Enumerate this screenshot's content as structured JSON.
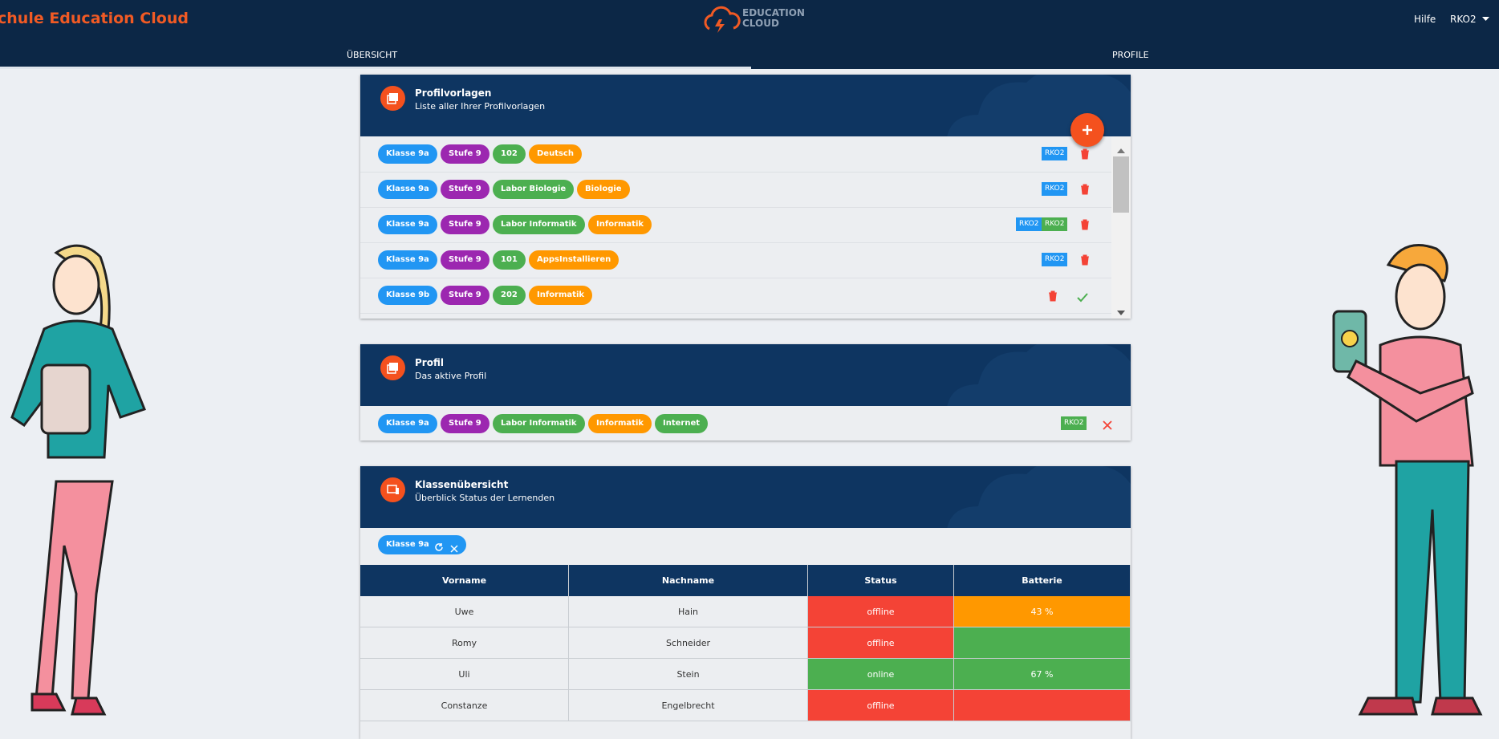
{
  "header": {
    "title": "chule Education Cloud",
    "logo": [
      "EDUCATION",
      "CLOUD"
    ],
    "links": [
      "Hilfe",
      "RKO2"
    ]
  },
  "tabs": [
    "ÜBERSICHT",
    "PROFILE"
  ],
  "profilvorlagen": {
    "title": "Profilvorlagen",
    "subtitle": "Liste aller Ihrer Profilvorlagen",
    "rows": [
      {
        "chips": [
          {
            "label": "Klasse 9a",
            "color": "#2196f3"
          },
          {
            "label": "Stufe 9",
            "color": "#9c27b0"
          },
          {
            "label": "102",
            "color": "#4caf50"
          },
          {
            "label": "Deutsch",
            "color": "#ff9800"
          }
        ],
        "tags": [
          {
            "label": "RKO2",
            "color": "#2196f3"
          }
        ],
        "check": false
      },
      {
        "chips": [
          {
            "label": "Klasse 9a",
            "color": "#2196f3"
          },
          {
            "label": "Stufe 9",
            "color": "#9c27b0"
          },
          {
            "label": "Labor Biologie",
            "color": "#4caf50"
          },
          {
            "label": "Biologie",
            "color": "#ff9800"
          }
        ],
        "tags": [
          {
            "label": "RKO2",
            "color": "#2196f3"
          }
        ],
        "check": false
      },
      {
        "chips": [
          {
            "label": "Klasse 9a",
            "color": "#2196f3"
          },
          {
            "label": "Stufe 9",
            "color": "#9c27b0"
          },
          {
            "label": "Labor Informatik",
            "color": "#4caf50"
          },
          {
            "label": "Informatik",
            "color": "#ff9800"
          }
        ],
        "tags": [
          {
            "label": "RKO2",
            "color": "#2196f3"
          },
          {
            "label": "RKO2",
            "color": "#4caf50"
          }
        ],
        "check": false
      },
      {
        "chips": [
          {
            "label": "Klasse 9a",
            "color": "#2196f3"
          },
          {
            "label": "Stufe 9",
            "color": "#9c27b0"
          },
          {
            "label": "101",
            "color": "#4caf50"
          },
          {
            "label": "AppsInstallieren",
            "color": "#ff9800"
          }
        ],
        "tags": [
          {
            "label": "RKO2",
            "color": "#2196f3"
          }
        ],
        "check": false
      },
      {
        "chips": [
          {
            "label": "Klasse 9b",
            "color": "#2196f3"
          },
          {
            "label": "Stufe 9",
            "color": "#9c27b0"
          },
          {
            "label": "202",
            "color": "#4caf50"
          },
          {
            "label": "Informatik",
            "color": "#ff9800"
          }
        ],
        "tags": [],
        "check": true
      }
    ]
  },
  "profil": {
    "title": "Profil",
    "subtitle": "Das aktive Profil",
    "chips": [
      {
        "label": "Klasse 9a",
        "color": "#2196f3"
      },
      {
        "label": "Stufe 9",
        "color": "#9c27b0"
      },
      {
        "label": "Labor Informatik",
        "color": "#4caf50"
      },
      {
        "label": "Informatik",
        "color": "#ff9800"
      },
      {
        "label": "Internet",
        "color": "#4caf50"
      }
    ],
    "tags": [
      {
        "label": "RKO2",
        "color": "#4caf50"
      }
    ]
  },
  "klassen": {
    "title": "Klassenübersicht",
    "subtitle": "Überblick Status der Lernenden",
    "chip": "Klasse 9a",
    "table": {
      "columns": [
        "Vorname",
        "Nachname",
        "Status",
        "Batterie"
      ],
      "rows": [
        {
          "cells": [
            "Uwe",
            "Hain",
            "offline",
            "43 %"
          ],
          "status_color": "#f44336",
          "battery_color": "#ff9800"
        },
        {
          "cells": [
            "Romy",
            "Schneider",
            "offline",
            null
          ],
          "status_color": "#f44336",
          "battery_color": "#4caf50"
        },
        {
          "cells": [
            "Uli",
            "Stein",
            "online",
            "67 %"
          ],
          "status_color": "#4caf50",
          "battery_color": "#4caf50"
        },
        {
          "cells": [
            "Constanze",
            "Engelbrecht",
            "offline",
            null
          ],
          "status_color": "#f44336",
          "battery_color": "#f44336"
        }
      ]
    }
  }
}
